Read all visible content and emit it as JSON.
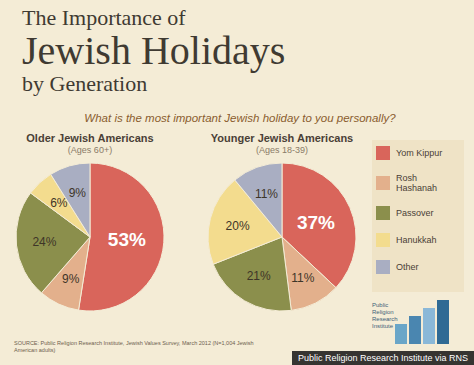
{
  "title": [
    "The Importance of",
    "Jewish Holidays",
    "by Generation"
  ],
  "subtitle": "What is the most important Jewish holiday to you personally?",
  "source": "SOURCE: Public Religion Research Institute, Jewish Values Survey, March 2012 (N=1,004 Jewish American adults)",
  "logo": "Public Religion Research Institute",
  "credit": "Public Religion Research Institute via RNS",
  "chart_data": [
    {
      "type": "pie",
      "title": "Older Jewish Americans",
      "subtitle": "(Ages 60+)",
      "categories": [
        "Yom Kippur",
        "Rosh Hashanah",
        "Passover",
        "Hanukkah",
        "Other"
      ],
      "values": [
        53,
        9,
        24,
        6,
        9
      ],
      "value_labels": [
        "53%",
        "9%",
        "24%",
        "6%",
        "9%"
      ],
      "data_labels": true,
      "colors": [
        "#d9655b",
        "#e3b08c",
        "#8b8f4c",
        "#f3dc8e",
        "#a9aec2"
      ]
    },
    {
      "type": "pie",
      "title": "Younger Jewish Americans",
      "subtitle": "(Ages 18-39)",
      "categories": [
        "Yom Kippur",
        "Rosh Hashanah",
        "Passover",
        "Hanukkah",
        "Other"
      ],
      "values": [
        37,
        11,
        21,
        20,
        11
      ],
      "value_labels": [
        "37%",
        "11%",
        "21%",
        "20%",
        "11%"
      ],
      "data_labels": true,
      "colors": [
        "#d9655b",
        "#e3b08c",
        "#8b8f4c",
        "#f3dc8e",
        "#a9aec2"
      ],
      "legend": "right"
    }
  ]
}
